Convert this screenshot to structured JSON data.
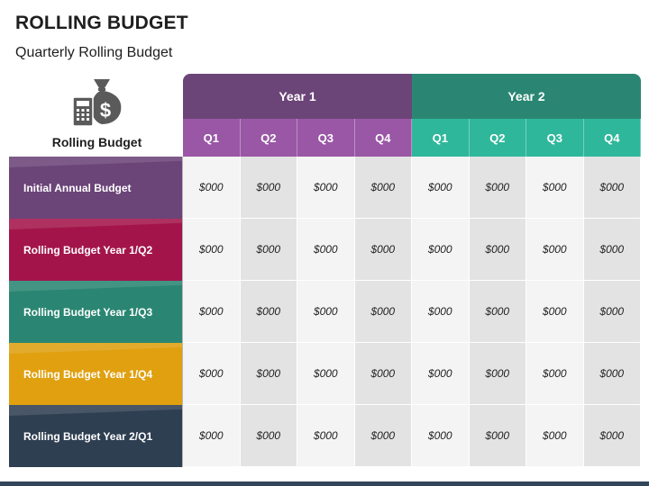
{
  "header": {
    "title": "ROLLING BUDGET",
    "subtitle": "Quarterly Rolling Budget"
  },
  "table": {
    "corner_label": "Rolling Budget",
    "corner_icon": "money-bag-calculator-icon",
    "years": [
      "Year 1",
      "Year 2"
    ],
    "quarters": [
      "Q1",
      "Q2",
      "Q3",
      "Q4",
      "Q1",
      "Q2",
      "Q3",
      "Q4"
    ],
    "rows": [
      {
        "label": "Initial Annual Budget",
        "color": "#6b4478",
        "values": [
          "$000",
          "$000",
          "$000",
          "$000",
          "$000",
          "$000",
          "$000",
          "$000"
        ]
      },
      {
        "label": "Rolling Budget Year 1/Q2",
        "color": "#a3154a",
        "values": [
          "$000",
          "$000",
          "$000",
          "$000",
          "$000",
          "$000",
          "$000",
          "$000"
        ]
      },
      {
        "label": "Rolling Budget Year 1/Q3",
        "color": "#2a8672",
        "values": [
          "$000",
          "$000",
          "$000",
          "$000",
          "$000",
          "$000",
          "$000",
          "$000"
        ]
      },
      {
        "label": "Rolling Budget Year 1/Q4",
        "color": "#e0a010",
        "values": [
          "$000",
          "$000",
          "$000",
          "$000",
          "$000",
          "$000",
          "$000",
          "$000"
        ]
      },
      {
        "label": "Rolling Budget Year 2/Q1",
        "color": "#2f3f52",
        "values": [
          "$000",
          "$000",
          "$000",
          "$000",
          "$000",
          "$000",
          "$000",
          "$000"
        ]
      }
    ]
  },
  "colors": {
    "year1": "#6b4478",
    "year1_quarter": "#9957a5",
    "year2": "#2a8672",
    "year2_quarter": "#2fb79b"
  }
}
